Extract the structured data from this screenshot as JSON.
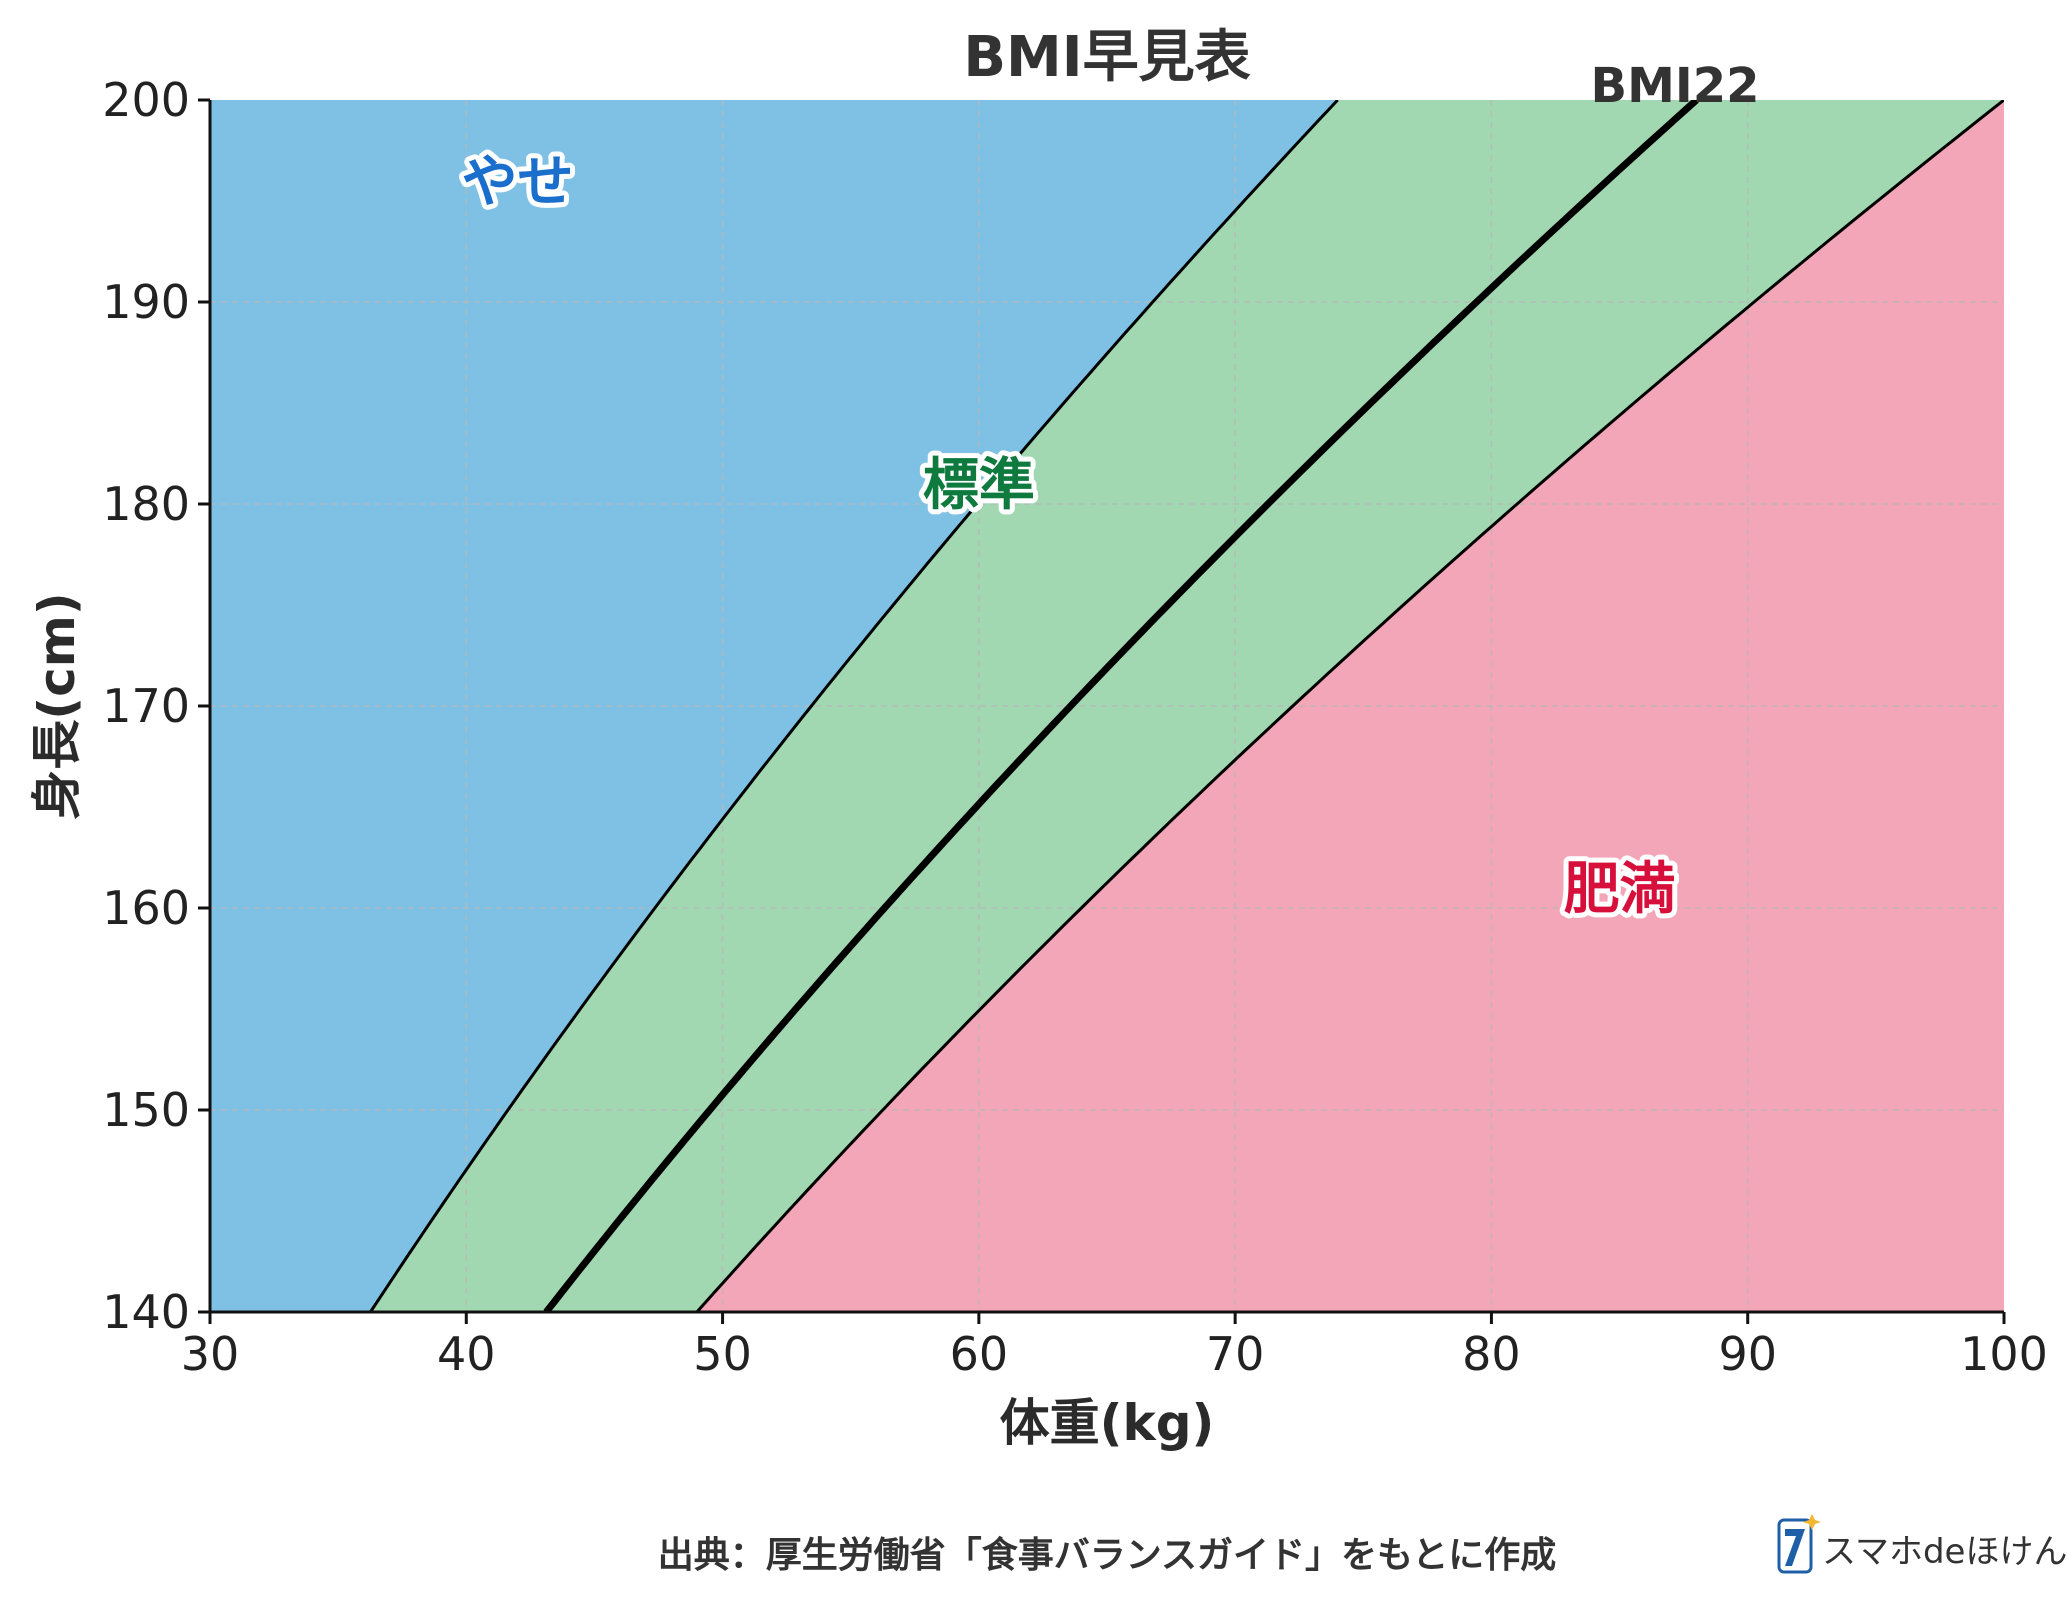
{
  "chart_data": {
    "type": "area",
    "title": "BMI早見表",
    "xlabel": "体重(kg)",
    "ylabel": "身長(cm)",
    "xlim": [
      30,
      100
    ],
    "ylim": [
      140,
      200
    ],
    "x_ticks": [
      30,
      40,
      50,
      60,
      70,
      80,
      90,
      100
    ],
    "y_ticks": [
      140,
      150,
      160,
      170,
      180,
      190,
      200
    ],
    "grid": true,
    "regions": [
      {
        "label": "やせ",
        "color": "#7fc1e5",
        "label_color": "#1a6fcc",
        "bmi_range": [
          null,
          18.5
        ],
        "label_pos": [
          42,
          196
        ]
      },
      {
        "label": "標準",
        "color": "#a1d8b1",
        "label_color": "#0e7a3e",
        "bmi_range": [
          18.5,
          25
        ],
        "label_pos": [
          60,
          181
        ]
      },
      {
        "label": "肥満",
        "color": "#f3a6b7",
        "label_color": "#d6103b",
        "bmi_range": [
          25,
          null
        ],
        "label_pos": [
          85,
          161
        ]
      }
    ],
    "series": [
      {
        "name": "BMI22",
        "bmi": 22,
        "stroke_color": "#000000",
        "emphasis": "bold"
      },
      {
        "bmi": 18.5,
        "stroke_color": "#000000"
      },
      {
        "bmi": 25,
        "stroke_color": "#000000"
      }
    ]
  },
  "source_note": "出典：厚生労働省「食事バランスガイド」をもとに作成",
  "logo": {
    "text": "スマホdeほけん",
    "icon": "logo-7-icon"
  }
}
